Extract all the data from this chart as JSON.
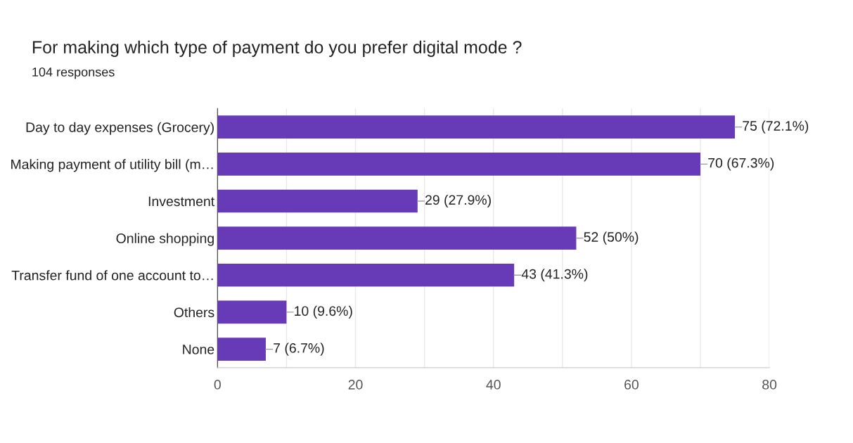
{
  "chart_data": {
    "type": "bar",
    "orientation": "horizontal",
    "title": "For making which type of payment do you prefer digital mode ?",
    "subtitle": "104 responses",
    "categories": [
      "Day to day expenses (Grocery)",
      "Making payment of utility bill (m…",
      "Investment",
      "Online shopping",
      "Transfer fund of one account to…",
      "Others",
      "None"
    ],
    "values": [
      75,
      70,
      29,
      52,
      43,
      10,
      7
    ],
    "value_labels": [
      "75 (72.1%)",
      "70 (67.3%)",
      "29 (27.9%)",
      "52 (50%)",
      "43 (41.3%)",
      "10 (9.6%)",
      "7 (6.7%)"
    ],
    "color": "#673ab7",
    "xlim": [
      0,
      80
    ],
    "xticks": [
      0,
      {
        "value": 10,
        "label": null
      },
      20,
      {
        "value": 30,
        "label": null
      },
      40,
      {
        "value": 50,
        "label": null
      },
      60,
      {
        "value": 70,
        "label": null
      },
      80
    ],
    "grid": "x"
  }
}
